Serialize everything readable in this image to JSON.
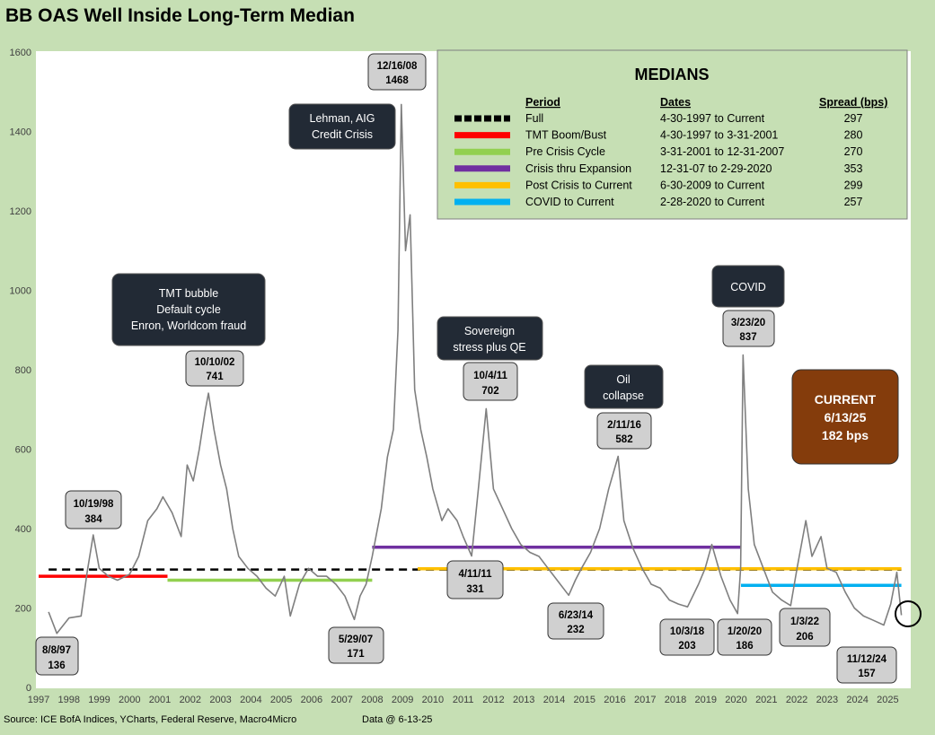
{
  "header": {
    "title": "BB OAS Well Inside Long-Term Median"
  },
  "footer": {
    "source": "Source: ICE BofA Indices, YCharts, Federal Reserve, Macro4Micro",
    "data_date": "Data @ 6-13-25"
  },
  "chart_data": {
    "type": "line",
    "title": "BB OAS Well Inside Long-Term Median",
    "xlabel": "",
    "ylabel": "",
    "xlim": [
      1997,
      2025.7
    ],
    "ylim": [
      0,
      1600
    ],
    "y_ticks": [
      0,
      200,
      400,
      600,
      800,
      1000,
      1200,
      1400,
      1600
    ],
    "x_ticks": [
      "1997",
      "1998",
      "1999",
      "2000",
      "2001",
      "2002",
      "2003",
      "2004",
      "2005",
      "2006",
      "2007",
      "2008",
      "2009",
      "2010",
      "2011",
      "2012",
      "2013",
      "2014",
      "2015",
      "2016",
      "2017",
      "2018",
      "2019",
      "2020",
      "2021",
      "2022",
      "2023",
      "2024",
      "2025"
    ],
    "grid": false,
    "series": [
      {
        "name": "BB OAS (bps)",
        "color": "#7f7f7f",
        "x": [
          1997.33,
          1997.6,
          1998.0,
          1998.4,
          1998.6,
          1998.8,
          1999.0,
          1999.3,
          1999.6,
          2000.0,
          2000.3,
          2000.6,
          2000.9,
          2001.1,
          2001.4,
          2001.7,
          2001.9,
          2002.1,
          2002.3,
          2002.5,
          2002.6,
          2002.78,
          2003.0,
          2003.2,
          2003.4,
          2003.6,
          2003.9,
          2004.2,
          2004.5,
          2004.8,
          2005.1,
          2005.3,
          2005.6,
          2005.9,
          2006.2,
          2006.5,
          2006.8,
          2007.1,
          2007.41,
          2007.6,
          2007.8,
          2008.0,
          2008.3,
          2008.5,
          2008.7,
          2008.85,
          2008.96,
          2009.1,
          2009.25,
          2009.4,
          2009.6,
          2009.8,
          2010.0,
          2010.3,
          2010.5,
          2010.8,
          2011.0,
          2011.28,
          2011.5,
          2011.76,
          2012.0,
          2012.3,
          2012.6,
          2012.9,
          2013.2,
          2013.5,
          2013.8,
          2014.1,
          2014.48,
          2014.7,
          2014.9,
          2015.2,
          2015.5,
          2015.8,
          2016.11,
          2016.3,
          2016.6,
          2016.9,
          2017.2,
          2017.5,
          2017.8,
          2018.1,
          2018.4,
          2018.76,
          2018.98,
          2019.2,
          2019.5,
          2019.8,
          2020.05,
          2020.15,
          2020.23,
          2020.4,
          2020.6,
          2020.9,
          2021.2,
          2021.5,
          2021.8,
          2022.01,
          2022.3,
          2022.5,
          2022.8,
          2023.0,
          2023.3,
          2023.6,
          2023.9,
          2024.2,
          2024.5,
          2024.87,
          2025.1,
          2025.3,
          2025.45
        ],
        "values": [
          190,
          136,
          175,
          180,
          290,
          384,
          300,
          280,
          270,
          285,
          330,
          420,
          450,
          480,
          440,
          380,
          560,
          520,
          600,
          700,
          741,
          650,
          560,
          500,
          400,
          330,
          300,
          280,
          250,
          230,
          280,
          180,
          260,
          300,
          280,
          280,
          260,
          230,
          171,
          230,
          260,
          330,
          450,
          580,
          650,
          900,
          1468,
          1100,
          1190,
          750,
          650,
          580,
          500,
          420,
          450,
          420,
          380,
          331,
          500,
          702,
          500,
          450,
          400,
          360,
          340,
          330,
          300,
          270,
          232,
          270,
          300,
          340,
          400,
          500,
          582,
          420,
          350,
          300,
          260,
          250,
          220,
          210,
          203,
          260,
          300,
          360,
          280,
          220,
          186,
          300,
          837,
          500,
          360,
          300,
          240,
          220,
          206,
          300,
          420,
          330,
          380,
          300,
          290,
          240,
          200,
          180,
          170,
          157,
          210,
          290,
          182
        ]
      }
    ],
    "medians": {
      "heading": "MEDIANS",
      "col_period": "Period",
      "col_dates": "Dates",
      "col_spread": "Spread (bps)",
      "rows": [
        {
          "period": "Full",
          "dates": "4-30-1997 to Current",
          "spread": "297",
          "value": 297,
          "x0": 1997.33,
          "x1": 2025.45,
          "color": "#000000",
          "dashed": true
        },
        {
          "period": "TMT Boom/Bust",
          "dates": "4-30-1997 to 3-31-2001",
          "spread": "280",
          "value": 280,
          "x0": 1997.0,
          "x1": 2001.25,
          "color": "#ff0000",
          "dashed": false
        },
        {
          "period": "Pre Crisis Cycle",
          "dates": "3-31-2001 to 12-31-2007",
          "spread": "270",
          "value": 270,
          "x0": 2001.25,
          "x1": 2008.0,
          "color": "#92d050",
          "dashed": false
        },
        {
          "period": "Crisis thru Expansion",
          "dates": "12-31-07 to 2-29-2020",
          "spread": "353",
          "value": 353,
          "x0": 2008.0,
          "x1": 2020.16,
          "color": "#7030a0",
          "dashed": false
        },
        {
          "period": "Post Crisis to Current",
          "dates": "6-30-2009  to Current",
          "spread": "299",
          "value": 299,
          "x0": 2009.5,
          "x1": 2025.45,
          "color": "#ffc000",
          "dashed": false
        },
        {
          "period": "COVID to Current",
          "dates": " 2-28-2020  to Current",
          "spread": "257",
          "value": 257,
          "x0": 2020.16,
          "x1": 2025.45,
          "color": "#00b0f0",
          "dashed": false
        }
      ]
    },
    "point_labels": [
      {
        "date": "8/8/97",
        "value": "136"
      },
      {
        "date": "10/19/98",
        "value": "384"
      },
      {
        "date": "10/10/02",
        "value": "741"
      },
      {
        "date": "5/29/07",
        "value": "171"
      },
      {
        "date": "12/16/08",
        "value": "1468"
      },
      {
        "date": "10/4/11",
        "value": "702"
      },
      {
        "date": "4/11/11",
        "value": "331"
      },
      {
        "date": "6/23/14",
        "value": "232"
      },
      {
        "date": "2/11/16",
        "value": "582"
      },
      {
        "date": "10/3/18",
        "value": "203"
      },
      {
        "date": "1/20/20",
        "value": "186"
      },
      {
        "date": "3/23/20",
        "value": "837"
      },
      {
        "date": "1/3/22",
        "value": "206"
      },
      {
        "date": "11/12/24",
        "value": "157"
      }
    ],
    "annotations": [
      {
        "text": [
          "Lehman, AIG",
          "Credit Crisis"
        ]
      },
      {
        "text": [
          "TMT bubble",
          "Default cycle",
          "Enron, Worldcom fraud"
        ]
      },
      {
        "text": [
          "Sovereign",
          "stress plus QE"
        ]
      },
      {
        "text": [
          "Oil",
          "collapse"
        ]
      },
      {
        "text": [
          "COVID"
        ]
      }
    ],
    "current": {
      "label": "CURRENT",
      "date": "6/13/25",
      "value": "182 bps",
      "color": "#843c0c"
    }
  }
}
